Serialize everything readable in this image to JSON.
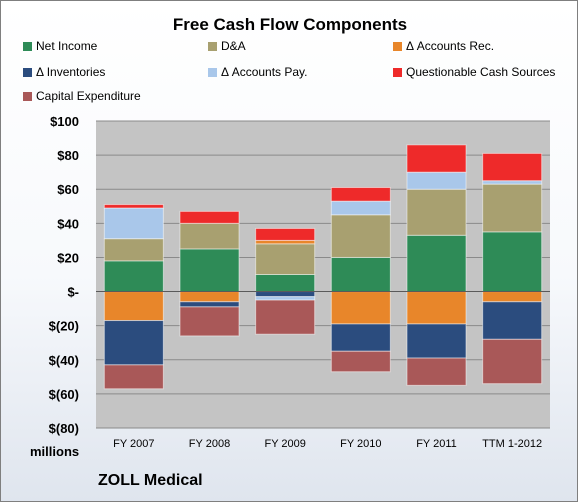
{
  "chart_data": {
    "type": "bar",
    "stacked": true,
    "title": "Free Cash Flow Components",
    "categories": [
      "FY 2007",
      "FY 2008",
      "FY 2009",
      "FY 2010",
      "FY 2011",
      "TTM 1-2012"
    ],
    "yaxis_unit": "millions",
    "ylim": [
      -80,
      100
    ],
    "yticks": [
      "$100",
      "$80",
      "$60",
      "$40",
      "$20",
      "$-",
      "$(20)",
      "$(40)",
      "$(60)",
      "$(80)"
    ],
    "grid": true,
    "legend_position": "top",
    "series": [
      {
        "name": "Net Income",
        "color": "#2e8b57",
        "values": [
          18,
          25,
          10,
          20,
          33,
          35
        ]
      },
      {
        "name": "D&A",
        "color": "#a8a070",
        "values": [
          13,
          15,
          18,
          25,
          27,
          28
        ]
      },
      {
        "name": "Δ Accounts Rec.",
        "color": "#e8862a",
        "values": [
          -17,
          -6,
          2,
          -19,
          -19,
          -6
        ]
      },
      {
        "name": "Δ Inventories",
        "color": "#2b4c7e",
        "values": [
          -26,
          -3,
          -3,
          -16,
          -20,
          -22
        ]
      },
      {
        "name": "Δ Accounts Pay.",
        "color": "#a9c7ea",
        "values": [
          18,
          0,
          -2,
          8,
          10,
          2
        ]
      },
      {
        "name": "Questionable Cash Sources",
        "color": "#ee2a2a",
        "values": [
          2,
          7,
          7,
          8,
          16,
          16
        ]
      },
      {
        "name": "Capital Expenditure",
        "color": "#a95858",
        "values": [
          -14,
          -17,
          -20,
          -12,
          -16,
          -26
        ]
      }
    ]
  },
  "footer": "ZOLL Medical"
}
